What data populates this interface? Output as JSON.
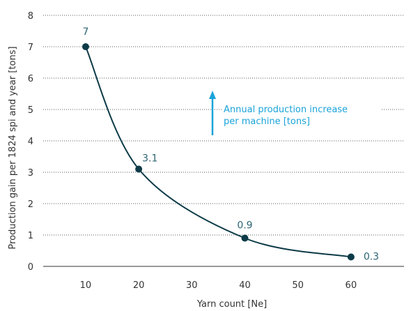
{
  "chart_data": {
    "type": "line",
    "xlabel": "Yarn count [Ne]",
    "ylabel": "Production gain per 1824 spi and year [tons]",
    "xlim": [
      2,
      70
    ],
    "ylim": [
      0,
      8
    ],
    "x_ticks": [
      10,
      20,
      30,
      40,
      50,
      60
    ],
    "y_ticks": [
      0,
      1,
      2,
      3,
      4,
      5,
      6,
      7,
      8
    ],
    "grid": "horizontal dotted",
    "series": [
      {
        "points": [
          {
            "x": 10,
            "y": 7
          },
          {
            "x": 20,
            "y": 3.1
          },
          {
            "x": 40,
            "y": 0.9
          },
          {
            "x": 60,
            "y": 0.3
          }
        ],
        "labels": [
          "7",
          "3.1",
          "0.9",
          "0.3"
        ],
        "color": "#0d3b47"
      }
    ],
    "annotation": {
      "lines": [
        "Annual production increase",
        "per machine [tons]"
      ],
      "color": "#1aa3d9",
      "arrow": "up"
    },
    "label_color": "#2c6474"
  }
}
